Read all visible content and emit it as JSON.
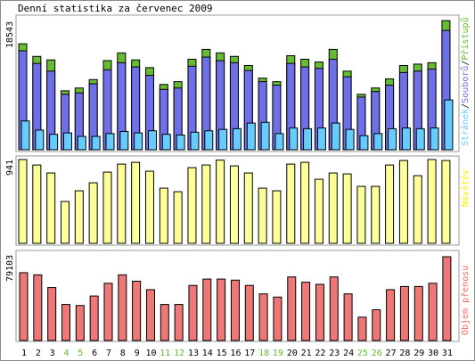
{
  "title": "Denní statistika za červenec 2009",
  "chart_data": [
    {
      "type": "bar",
      "panel": "traffic",
      "max_label": "18543",
      "right_labels": [
        {
          "text": "Stránek",
          "color": "#66ccff"
        },
        {
          "text": "/",
          "color": "#000000"
        },
        {
          "text": "Souborů",
          "color": "#6f6fe8"
        },
        {
          "text": "/",
          "color": "#000000"
        },
        {
          "text": "Přístupů",
          "color": "#66bb33"
        }
      ],
      "ymax": 18543,
      "categories": [
        "1",
        "2",
        "3",
        "4",
        "5",
        "6",
        "7",
        "8",
        "9",
        "10",
        "11",
        "12",
        "13",
        "14",
        "15",
        "16",
        "17",
        "18",
        "19",
        "20",
        "21",
        "22",
        "23",
        "24",
        "25",
        "26",
        "27",
        "28",
        "29",
        "30",
        "31"
      ],
      "weekend_days": [
        "4",
        "5",
        "11",
        "12",
        "18",
        "19",
        "25",
        "26"
      ],
      "series": [
        {
          "name": "Přístupů",
          "color": "#66bb33",
          "values": [
            15100,
            13300,
            12800,
            8400,
            8800,
            10000,
            12700,
            13800,
            12800,
            11700,
            9300,
            9700,
            12900,
            14300,
            13800,
            13300,
            12000,
            10200,
            9700,
            13400,
            12900,
            12500,
            14300,
            11200,
            7900,
            8800,
            10100,
            12000,
            12200,
            12400,
            18400
          ]
        },
        {
          "name": "Souborů",
          "color": "#6f6fe8",
          "values": [
            14100,
            12300,
            11200,
            7900,
            8100,
            9400,
            11400,
            12400,
            11800,
            10600,
            8600,
            8800,
            11900,
            13200,
            12700,
            12400,
            11300,
            9700,
            9200,
            12300,
            11800,
            11600,
            12900,
            10400,
            7500,
            8300,
            9200,
            11000,
            11200,
            11500,
            17000
          ]
        },
        {
          "name": "Stránek",
          "color": "#66ccff",
          "values": [
            4100,
            2800,
            2200,
            2400,
            1900,
            1900,
            2300,
            2600,
            2400,
            2700,
            2200,
            2100,
            2500,
            2700,
            2900,
            3000,
            3800,
            3900,
            2300,
            3100,
            3000,
            3100,
            3800,
            2900,
            2000,
            2300,
            3000,
            3100,
            3000,
            3100,
            7100
          ]
        }
      ]
    },
    {
      "type": "bar",
      "panel": "visits",
      "max_label": "941",
      "right_label": {
        "text": "Návštěv",
        "color": "#f5f500"
      },
      "ymax": 941,
      "series": [
        {
          "name": "Návštěv",
          "color": "#ffff99",
          "values": [
            941,
            880,
            790,
            470,
            590,
            680,
            800,
            890,
            910,
            810,
            620,
            580,
            850,
            880,
            935,
            870,
            790,
            620,
            590,
            890,
            910,
            720,
            790,
            780,
            640,
            640,
            880,
            930,
            760,
            941,
            930
          ]
        }
      ]
    },
    {
      "type": "bar",
      "panel": "volume",
      "max_label": "79103",
      "right_label": {
        "text": "Objem přenosu",
        "color": "#ff6666"
      },
      "ymax": 79103,
      "series": [
        {
          "name": "Objem přenosu",
          "color": "#ee7777",
          "values": [
            64000,
            62000,
            50000,
            34000,
            33000,
            42000,
            54000,
            62000,
            56000,
            48000,
            34000,
            34000,
            52000,
            58000,
            58000,
            57000,
            52000,
            44000,
            41000,
            60000,
            55000,
            53000,
            60000,
            44000,
            22000,
            29000,
            48000,
            51000,
            51000,
            54000,
            79103
          ]
        }
      ]
    }
  ]
}
